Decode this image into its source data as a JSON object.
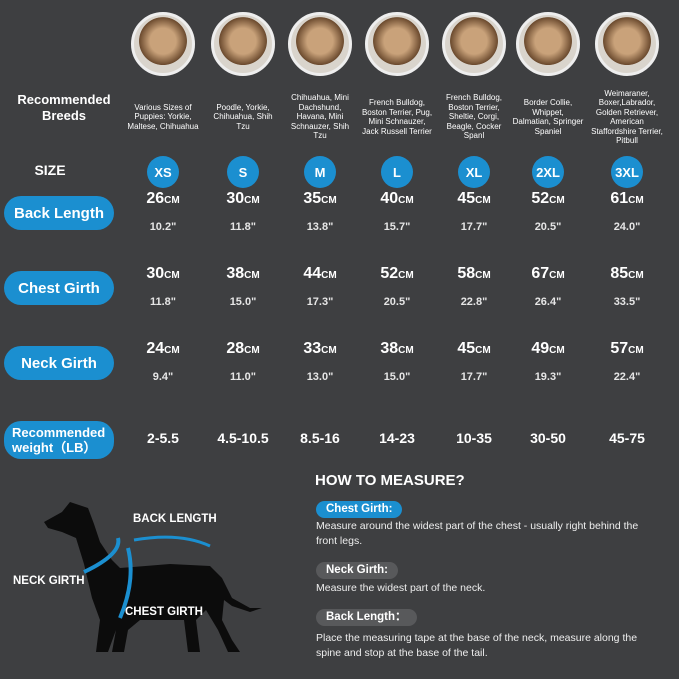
{
  "header": {
    "breeds_label": "Recommended Breeds",
    "size_label": "SIZE"
  },
  "sizes": [
    {
      "size": "XS",
      "breeds": "Various Sizes of Puppies: Yorkie, Maltese, Chihuahua",
      "back_cm": "26",
      "back_in": "10.2\"",
      "chest_cm": "30",
      "chest_in": "11.8\"",
      "neck_cm": "24",
      "neck_in": "9.4\"",
      "weight": "2-5.5"
    },
    {
      "size": "S",
      "breeds": "Poodle, Yorkie, Chihuahua, Shih Tzu",
      "back_cm": "30",
      "back_in": "11.8\"",
      "chest_cm": "38",
      "chest_in": "15.0\"",
      "neck_cm": "28",
      "neck_in": "11.0\"",
      "weight": "4.5-10.5"
    },
    {
      "size": "M",
      "breeds": "Chihuahua, Mini Dachshund, Havana, Mini Schnauzer, Shih Tzu",
      "back_cm": "35",
      "back_in": "13.8\"",
      "chest_cm": "44",
      "chest_in": "17.3\"",
      "neck_cm": "33",
      "neck_in": "13.0\"",
      "weight": "8.5-16"
    },
    {
      "size": "L",
      "breeds": "French Bulldog, Boston Terrier, Pug, Mini Schnauzer, Jack Russell Terrier",
      "back_cm": "40",
      "back_in": "15.7\"",
      "chest_cm": "52",
      "chest_in": "20.5\"",
      "neck_cm": "38",
      "neck_in": "15.0\"",
      "weight": "14-23"
    },
    {
      "size": "XL",
      "breeds": "French Bulldog, Boston Terrier, Sheltie, Corgi, Beagle, Cocker Spanl",
      "back_cm": "45",
      "back_in": "17.7\"",
      "chest_cm": "58",
      "chest_in": "22.8\"",
      "neck_cm": "45",
      "neck_in": "17.7\"",
      "weight": "10-35"
    },
    {
      "size": "2XL",
      "breeds": "Border Collie, Whippet, Dalmatian, Springer Spaniel",
      "back_cm": "52",
      "back_in": "20.5\"",
      "chest_cm": "67",
      "chest_in": "26.4\"",
      "neck_cm": "49",
      "neck_in": "19.3\"",
      "weight": "30-50"
    },
    {
      "size": "3XL",
      "breeds": "Weimaraner, Boxer,Labrador, Golden Retriever, American Staffordshire Terrier, Pitbull",
      "back_cm": "61",
      "back_in": "24.0\"",
      "chest_cm": "85",
      "chest_in": "33.5\"",
      "neck_cm": "57",
      "neck_in": "22.4\"",
      "weight": "45-75"
    }
  ],
  "unit_cm": "CM",
  "rows": {
    "back": "Back Length",
    "chest": "Chest Girth",
    "neck": "Neck Girth",
    "weight": "Recommended weight（LB）"
  },
  "diagram": {
    "back": "BACK LENGTH",
    "neck": "NECK GIRTH",
    "chest": "CHEST GIRTH"
  },
  "measure": {
    "title": "HOW TO MEASURE?",
    "chest_label": "Chest Girth:",
    "chest_desc": "Measure around the widest part of the chest - usually right behind the front legs.",
    "neck_label": "Neck Girth:",
    "neck_desc": "Measure the widest part of the neck.",
    "back_label": "Back Length：",
    "back_desc": "Place the measuring tape at the base of the neck, measure along the spine and stop at the base of the tail."
  },
  "colors": {
    "background": "#3e3f41",
    "accent": "#1b8fd0",
    "tag_gray": "#58595b"
  }
}
